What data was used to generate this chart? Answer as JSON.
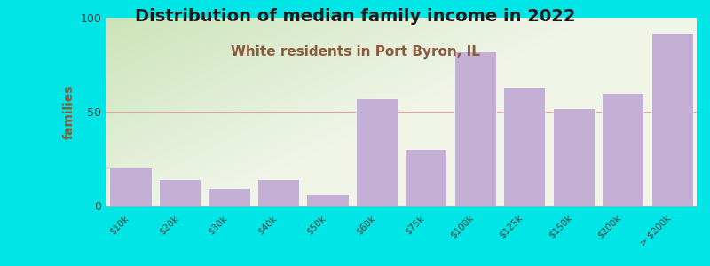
{
  "title": "Distribution of median family income in 2022",
  "subtitle": "White residents in Port Byron, IL",
  "categories": [
    "$10k",
    "$20k",
    "$30k",
    "$40k",
    "$50k",
    "$60k",
    "$75k",
    "$100k",
    "$125k",
    "$150k",
    "$200k",
    "> $200k"
  ],
  "values": [
    20,
    14,
    9,
    14,
    6,
    57,
    30,
    82,
    63,
    52,
    60,
    92
  ],
  "bar_color": "#c4b0d5",
  "title_fontsize": 14,
  "subtitle_fontsize": 11,
  "subtitle_color": "#8b5a3c",
  "title_color": "#1a1a1a",
  "ylabel": "families",
  "ylabel_color": "#8b5a3c",
  "background_color": "#00e5e5",
  "grid_color": "#e8a0a8",
  "ylim": [
    0,
    100
  ],
  "yticks": [
    0,
    50,
    100
  ]
}
